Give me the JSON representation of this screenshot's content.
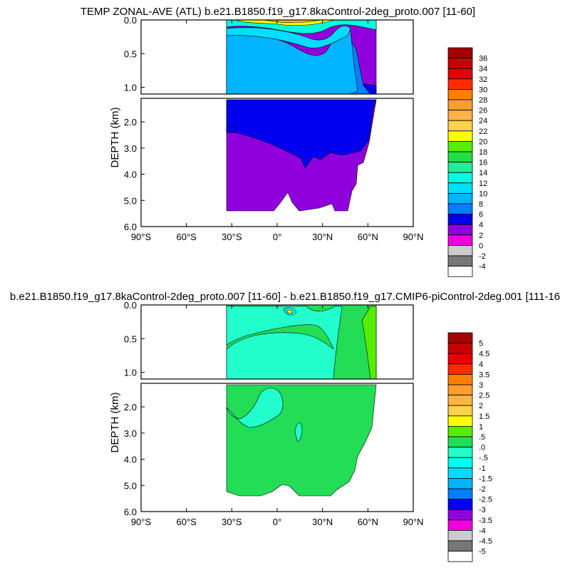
{
  "chart_data": [
    {
      "type": "heatmap",
      "title": "TEMP ZONAL-AVE (ATL) b.e21.B1850.f19_g17.8kaControl-2deg_proto.007 [11-60]",
      "ylabel": "DEPTH (km)",
      "xlabel": "",
      "x_tick_labels": [
        "90°S",
        "60°S",
        "30°S",
        "0°",
        "30°N",
        "60°N",
        "90°N"
      ],
      "x_ticks": [
        -90,
        -60,
        -30,
        0,
        30,
        60,
        90
      ],
      "xlim": [
        -90,
        90
      ],
      "y_ticks_upper": [
        0.0,
        0.5,
        1.0
      ],
      "y_tick_labels_upper": [
        "0.0",
        "0.5",
        "1.0"
      ],
      "ylim_upper": [
        0,
        1.1
      ],
      "y_ticks_lower": [
        2.0,
        3.0,
        4.0,
        5.0,
        6.0
      ],
      "y_tick_labels_lower": [
        "2.0",
        "3.0",
        "4.0",
        "5.0",
        "6.0"
      ],
      "ylim_lower": [
        1.1,
        6.0
      ],
      "colorbar": {
        "labels": [
          "36",
          "34",
          "32",
          "30",
          "28",
          "26",
          "24",
          "22",
          "20",
          "18",
          "16",
          "14",
          "12",
          "10",
          "8",
          "6",
          "4",
          "2",
          "0",
          "-2",
          "-4"
        ],
        "colors": [
          "#a50000",
          "#c80000",
          "#e60000",
          "#ff2a00",
          "#ff8000",
          "#ff9d2e",
          "#ffb347",
          "#ffd24d",
          "#ffff00",
          "#55ee00",
          "#22dd44",
          "#22ee99",
          "#00ffdd",
          "#00ddff",
          "#00b4ff",
          "#0080ff",
          "#0000ee",
          "#9000dd",
          "#ee00dd",
          "#cccccc",
          "#777777",
          "#ffffff"
        ]
      },
      "fill_levels": [
        {
          "value": 2,
          "color": "#9000dd"
        },
        {
          "value": 4,
          "color": "#0000ee"
        },
        {
          "value": 6,
          "color": "#0080ff"
        },
        {
          "value": 8,
          "color": "#00b4ff"
        },
        {
          "value": 10,
          "color": "#00ddff"
        },
        {
          "value": 14,
          "color": "#00ffdd"
        },
        {
          "value": 20,
          "color": "#ffff00"
        },
        {
          "value": 24,
          "color": "#ffb347"
        }
      ]
    },
    {
      "type": "heatmap",
      "title": "b.e21.B1850.f19_g17.8kaControl-2deg_proto.007 [11-60] - b.e21.B1850.f19_g17.CMIP6-piControl-2deg.001 [111-16",
      "ylabel": "DEPTH (km)",
      "xlabel": "",
      "x_tick_labels": [
        "90°S",
        "60°S",
        "30°S",
        "0°",
        "30°N",
        "60°N",
        "90°N"
      ],
      "x_ticks": [
        -90,
        -60,
        -30,
        0,
        30,
        60,
        90
      ],
      "xlim": [
        -90,
        90
      ],
      "y_ticks_upper": [
        0.0,
        0.5,
        1.0
      ],
      "y_tick_labels_upper": [
        "0.0",
        "0.5",
        "1.0"
      ],
      "ylim_upper": [
        0,
        1.1
      ],
      "y_ticks_lower": [
        2.0,
        3.0,
        4.0,
        5.0,
        6.0
      ],
      "y_tick_labels_lower": [
        "2.0",
        "3.0",
        "4.0",
        "5.0",
        "6.0"
      ],
      "ylim_lower": [
        1.1,
        6.0
      ],
      "colorbar": {
        "labels": [
          "5",
          "4.5",
          "4",
          "3.5",
          "3",
          "2.5",
          "2",
          "1.5",
          "1",
          ".5",
          ".0",
          "-.5",
          "-1",
          "-1.5",
          "-2",
          "-2.5",
          "-3",
          "-3.5",
          "-4",
          "-4.5",
          "-5"
        ],
        "colors": [
          "#a50000",
          "#c80000",
          "#e60000",
          "#ff2a00",
          "#ff8000",
          "#ff9d2e",
          "#ffb347",
          "#ffd24d",
          "#ffff00",
          "#55ee00",
          "#22dd55",
          "#22ffcc",
          "#00ffee",
          "#00ddff",
          "#00b4ff",
          "#0080ff",
          "#0000ee",
          "#9000dd",
          "#ee00dd",
          "#cccccc",
          "#777777",
          "#ffffff"
        ]
      },
      "fill_levels": [
        {
          "value": 0.25,
          "color": "#22dd55"
        },
        {
          "value": -0.25,
          "color": "#22ffcc"
        },
        {
          "value": 0.75,
          "color": "#55ee00"
        },
        {
          "value": -1.25,
          "color": "#00ffee"
        },
        {
          "value": 1.25,
          "color": "#ffff00"
        }
      ]
    }
  ]
}
